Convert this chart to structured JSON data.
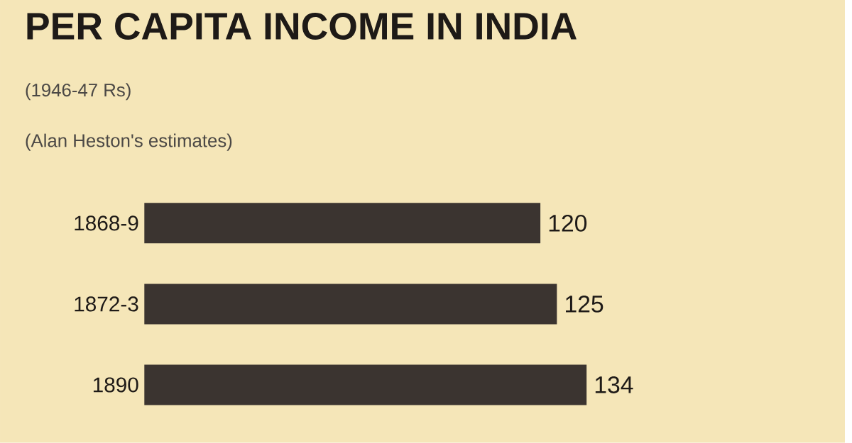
{
  "chart_data": {
    "type": "bar",
    "orientation": "horizontal",
    "title": "PER CAPITA INCOME IN INDIA",
    "subtitle": "(1946-47 Rs)",
    "annotations": [
      "(Alan Heston's estimates)"
    ],
    "categories": [
      "1868-9",
      "1872-3",
      "1890"
    ],
    "values": [
      120,
      125,
      134
    ],
    "color": "#3b3430",
    "data_labels": true,
    "tick_labels": "y"
  }
}
